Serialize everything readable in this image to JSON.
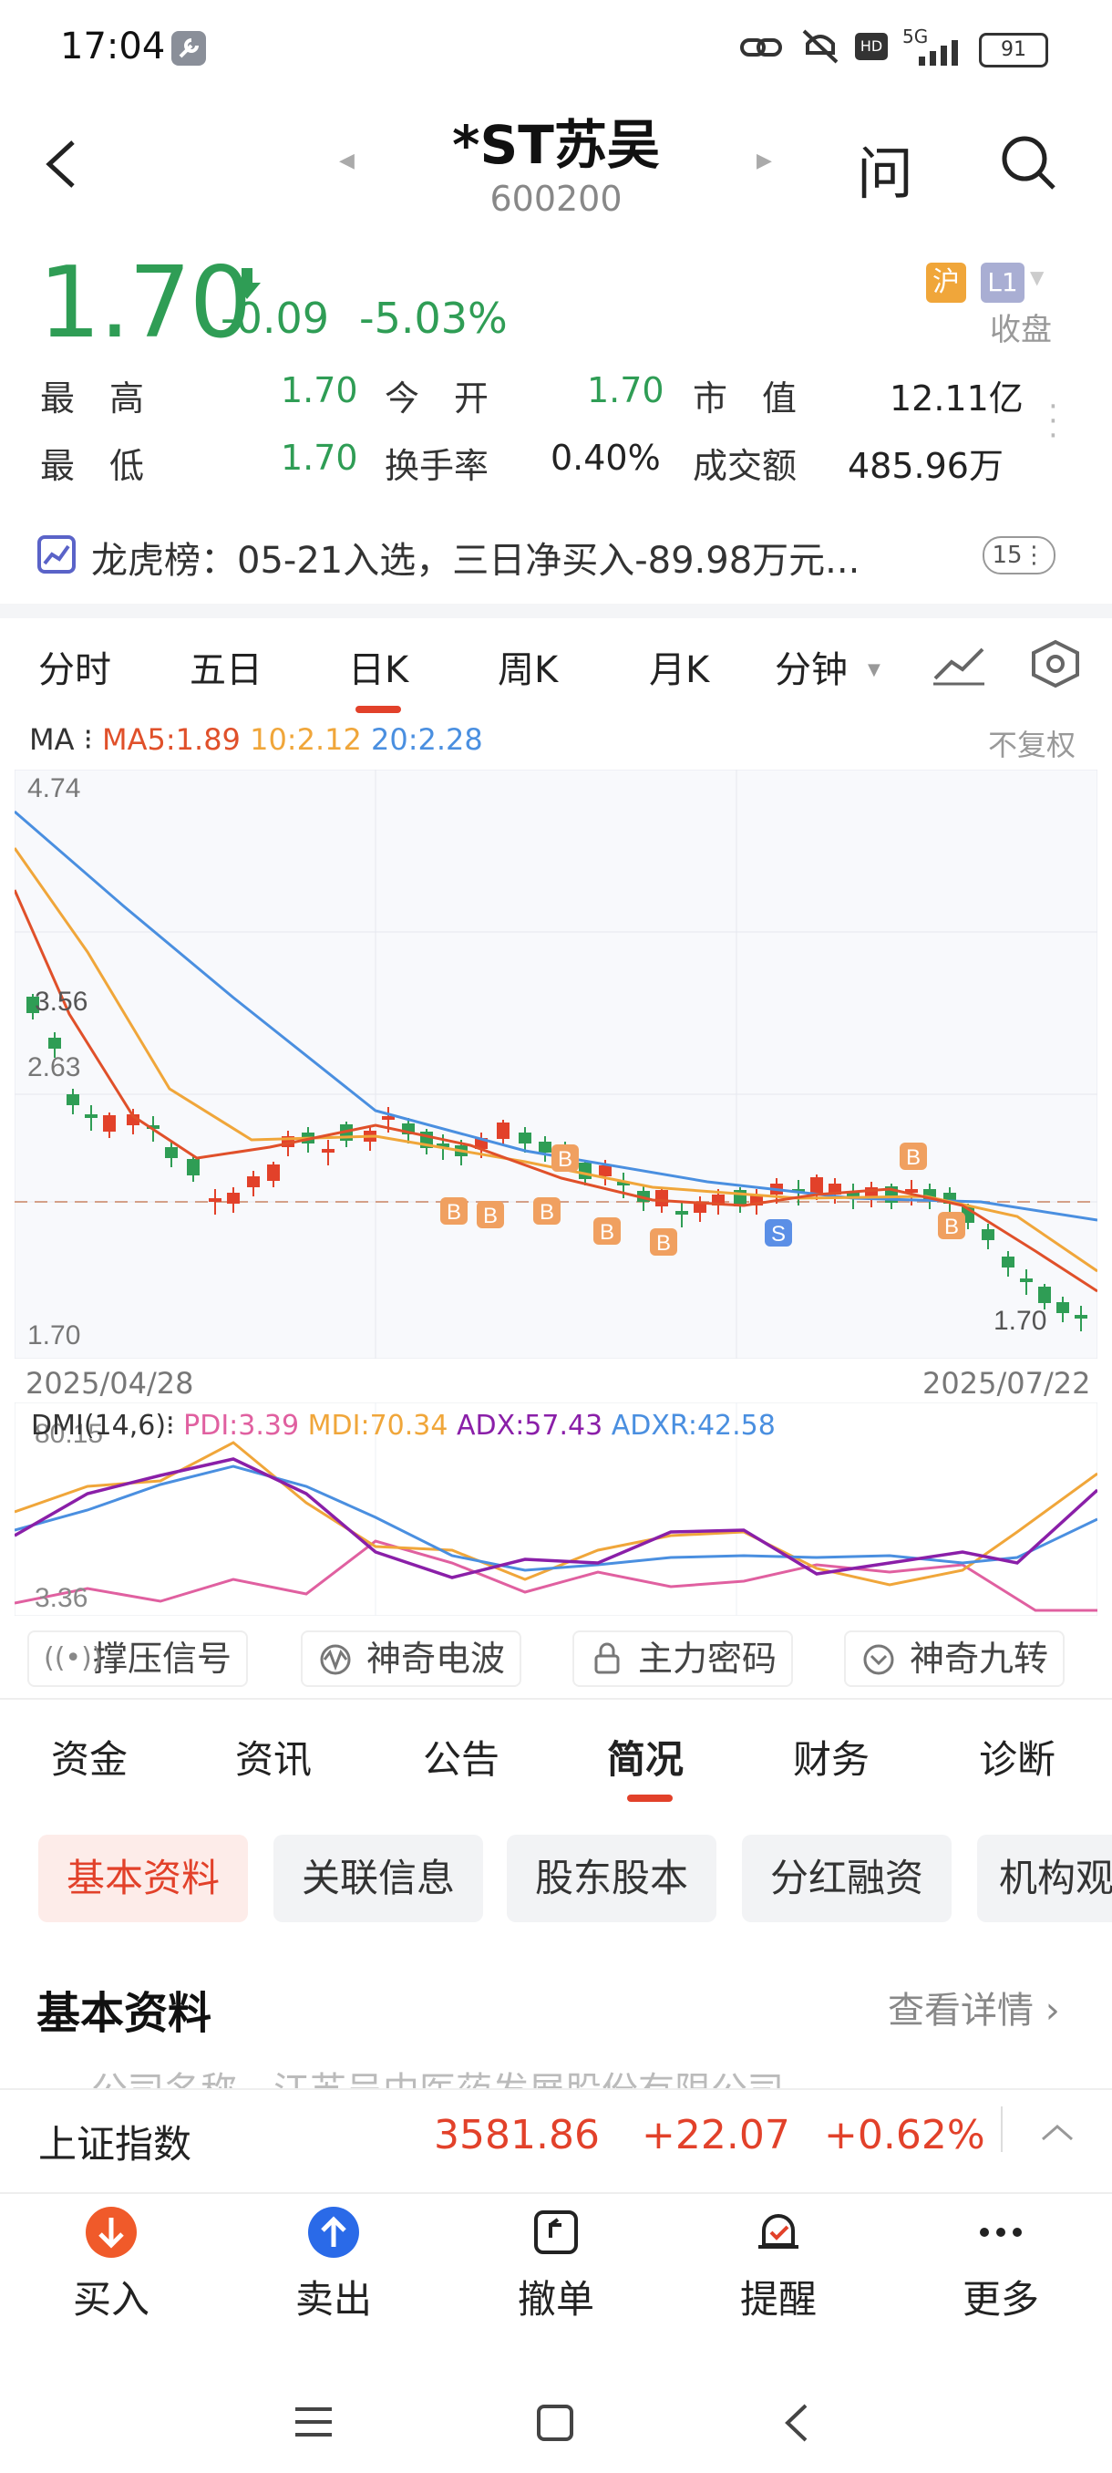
{
  "status": {
    "time": "17:04",
    "battery": "91",
    "network": "5G"
  },
  "header": {
    "title": "*ST苏吴",
    "code": "600200",
    "ask_label": "问"
  },
  "quote": {
    "price": "1.70",
    "change": "-0.09",
    "change_pct": "-5.03%",
    "exchange_tag": "沪",
    "level_tag": "L1",
    "status": "收盘",
    "high_label": "最　高",
    "high": "1.70",
    "open_label": "今　开",
    "open": "1.70",
    "mktcap_label": "市　值",
    "mktcap": "12.11亿",
    "low_label": "最　低",
    "low": "1.70",
    "turnover_label": "换手率",
    "turnover": "0.40%",
    "amount_label": "成交额",
    "amount": "485.96万"
  },
  "dragon": {
    "text": "龙虎榜：05-21入选，三日净买入-89.98万元...",
    "badge": "15"
  },
  "chart_tabs": [
    "分时",
    "五日",
    "日K",
    "周K",
    "月K",
    "分钟"
  ],
  "active_chart_tab": "日K",
  "ma_legend": {
    "label": "MA",
    "ma5": "MA5:1.89",
    "ma10": "10:2.12",
    "ma20": "20:2.28",
    "adjust": "不复权"
  },
  "kchart": {
    "y_max": "4.74",
    "y_min": "1.70",
    "mark_high": "3.56",
    "mark_mid": "2.63",
    "mark_last": "1.70",
    "date_start": "2025/04/28",
    "date_end": "2025/07/22"
  },
  "dmi": {
    "label": "DMI(14,6)",
    "pdi": "PDI:3.39",
    "mdi": "MDI:70.34",
    "adx": "ADX:57.43",
    "adxr": "ADXR:42.58",
    "y_max": "80.15",
    "y_min": "3.36"
  },
  "tools": [
    "撑压信号",
    "神奇电波",
    "主力密码",
    "神奇九转"
  ],
  "section_tabs": [
    "资金",
    "资讯",
    "公告",
    "简况",
    "财务",
    "诊断"
  ],
  "active_section_tab": "简况",
  "sub_tabs": [
    "基本资料",
    "关联信息",
    "股东股本",
    "分红融资",
    "机构观"
  ],
  "basic": {
    "title": "基本资料",
    "detail": "查看详情",
    "cutoff_text": "公司名称　江苏吴中医药发展股份有限公司"
  },
  "index_bar": {
    "name": "上证指数",
    "value": "3581.86",
    "change": "+22.07",
    "pct": "+0.62%"
  },
  "actions": [
    "买入",
    "卖出",
    "撤单",
    "提醒",
    "更多"
  ],
  "colors": {
    "up": "#e2412a",
    "down": "#2f9d55",
    "ma5": "#e0502a",
    "ma10": "#f0a63a",
    "ma20": "#4a8fe0",
    "pdi": "#e060a0",
    "adx": "#8a1fa8"
  }
}
